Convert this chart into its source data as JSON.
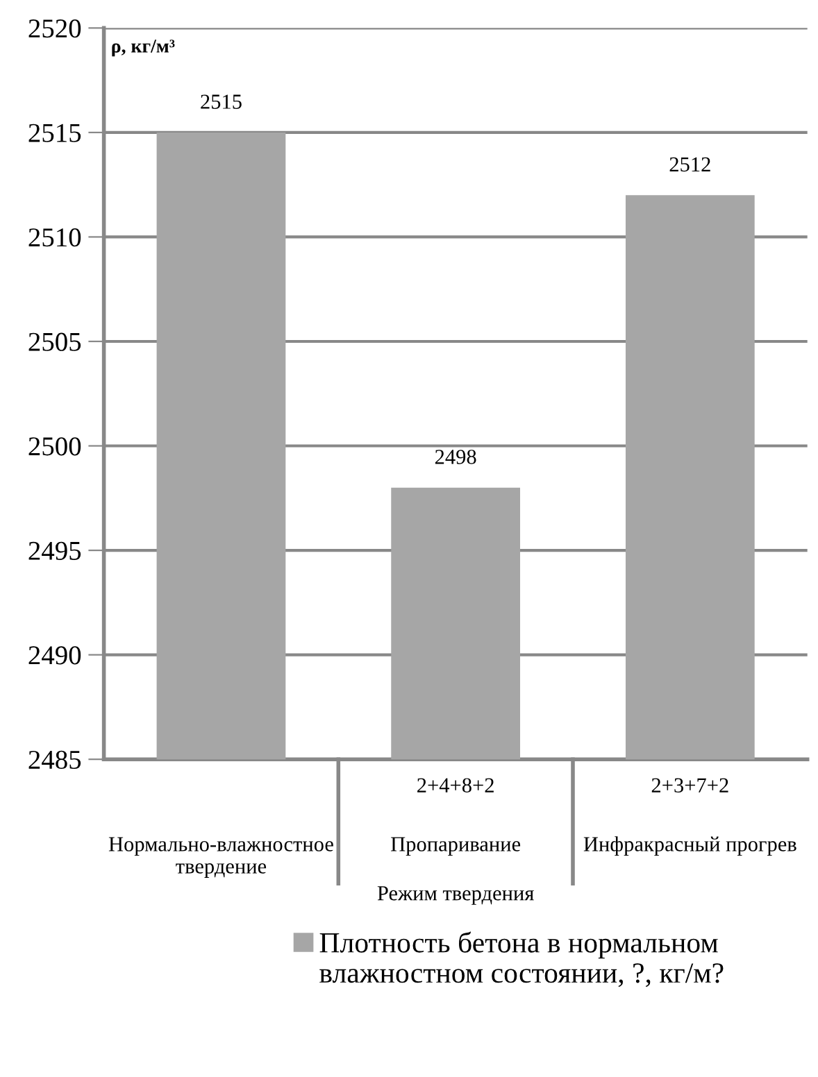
{
  "chart_data": {
    "type": "bar",
    "ylabel": "ρ, кг/м³",
    "xlabel": "Режим твердения",
    "categories": [
      "Нормально-влажностное\nтвердение",
      "Пропаривание",
      "Инфракрасный прогрев"
    ],
    "annotations": [
      "2+4+8+2",
      "2+3+7+2"
    ],
    "series": [
      {
        "name": "Плотность бетона в нормальном влажностном состоянии, ?, кг/м?",
        "color": "#a6a6a6",
        "values": [
          2515,
          2498,
          2512
        ]
      }
    ],
    "ylim": [
      2485,
      2520
    ],
    "yticks": [
      2485,
      2490,
      2495,
      2500,
      2505,
      2510,
      2515,
      2520
    ],
    "grid": "y",
    "data_labels": true,
    "legend": "bottom"
  }
}
